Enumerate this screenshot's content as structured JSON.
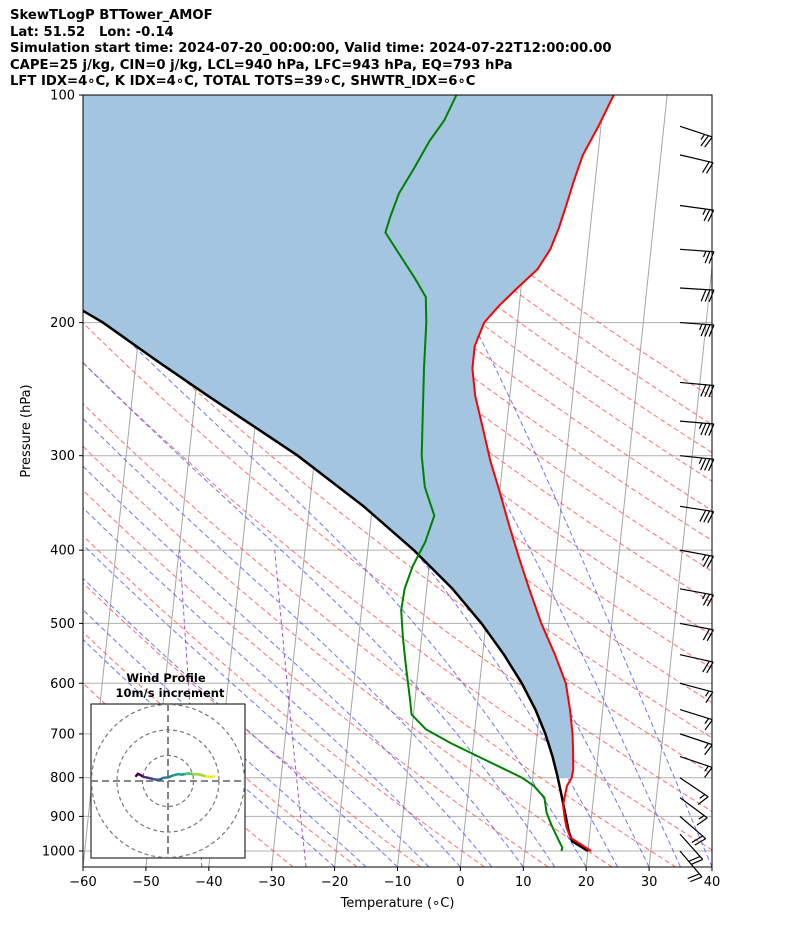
{
  "header": {
    "title": "SkewTLogP BTTower_AMOF",
    "location": "Lat: 51.52   Lon: -0.14",
    "times": "Simulation start time: 2024-07-20_00:00:00, Valid time: 2024-07-22T12:00:00.00",
    "indices1": "CAPE=25 j/kg, CIN=0 j/kg, LCL=940 hPa, LFC=943 hPa, EQ=793 hPa",
    "indices2": "LFT IDX=4∘C, K IDX=4∘C, TOTAL TOTS=39∘C, SHWTR_IDX=6∘C"
  },
  "chart_data": [
    {
      "type": "line",
      "subtype": "skew-t log-p",
      "xlabel": "Temperature (∘C)",
      "ylabel": "Pressure (hPa)",
      "xlim": [
        -60,
        40
      ],
      "ylim": [
        1050,
        100
      ],
      "yscale": "log",
      "xticks": [
        -60,
        -50,
        -40,
        -30,
        -20,
        -10,
        0,
        10,
        20,
        30,
        40
      ],
      "yticks": [
        100,
        200,
        300,
        400,
        500,
        600,
        700,
        800,
        900,
        1000
      ],
      "grid": true,
      "colors": {
        "temperature": "#ff0000",
        "dewpoint": "#008000",
        "parcel": "#000000",
        "cape_fill": "#a3c5df",
        "dry_adiabats": "#ff5555",
        "moist_adiabats": "#4455ff",
        "mixing_ratio": "#9b30d0",
        "isotherms": "#aaaaaa",
        "barbs": "#000000"
      },
      "series": [
        {
          "role": "temperature",
          "points": [
            [
              20.5,
              1000
            ],
            [
              17,
              960
            ],
            [
              16.2,
              930
            ],
            [
              15.7,
              900
            ],
            [
              15.3,
              870
            ],
            [
              15.4,
              850
            ],
            [
              15.6,
              820
            ],
            [
              16.2,
              800
            ],
            [
              16.3,
              780
            ],
            [
              16.0,
              740
            ],
            [
              15.6,
              700
            ],
            [
              14.8,
              650
            ],
            [
              13.7,
              600
            ],
            [
              11.5,
              550
            ],
            [
              8.8,
              500
            ],
            [
              6.3,
              450
            ],
            [
              4.2,
              410
            ],
            [
              2.0,
              370
            ],
            [
              0.0,
              335
            ],
            [
              -2.0,
              305
            ],
            [
              -3.8,
              275
            ],
            [
              -5.5,
              250
            ],
            [
              -6.4,
              230
            ],
            [
              -6.4,
              215
            ],
            [
              -5.3,
              200
            ],
            [
              -3.2,
              190
            ],
            [
              -0.6,
              180
            ],
            [
              2.3,
              170
            ],
            [
              4.0,
              160
            ],
            [
              5.0,
              150
            ],
            [
              5.8,
              140
            ],
            [
              6.6,
              130
            ],
            [
              7.6,
              120
            ],
            [
              9.6,
              110
            ],
            [
              11.5,
              100
            ]
          ]
        },
        {
          "role": "dewpoint",
          "points": [
            [
              15.8,
              1000
            ],
            [
              15.9,
              990
            ],
            [
              15.4,
              975
            ],
            [
              14.6,
              950
            ],
            [
              13.8,
              925
            ],
            [
              12.8,
              890
            ],
            [
              12.2,
              850
            ],
            [
              10.3,
              820
            ],
            [
              8.3,
              800
            ],
            [
              2.5,
              760
            ],
            [
              -3.6,
              720
            ],
            [
              -7.8,
              690
            ],
            [
              -10.3,
              660
            ],
            [
              -10.8,
              630
            ],
            [
              -11.4,
              600
            ],
            [
              -12.2,
              560
            ],
            [
              -13.0,
              520
            ],
            [
              -13.7,
              480
            ],
            [
              -13.5,
              450
            ],
            [
              -12.6,
              420
            ],
            [
              -11.0,
              390
            ],
            [
              -10.0,
              360
            ],
            [
              -12.0,
              330
            ],
            [
              -13.0,
              300
            ],
            [
              -13.6,
              260
            ],
            [
              -14.1,
              230
            ],
            [
              -14.5,
              200
            ],
            [
              -15.0,
              185
            ],
            [
              -17.0,
              175
            ],
            [
              -20.5,
              160
            ],
            [
              -22.5,
              152
            ],
            [
              -22.0,
              145
            ],
            [
              -21.0,
              135
            ],
            [
              -19.0,
              125
            ],
            [
              -17.0,
              115
            ],
            [
              -15.0,
              108
            ],
            [
              -13.5,
              100
            ]
          ]
        },
        {
          "role": "parcel",
          "points": [
            [
              20.0,
              1000
            ],
            [
              17.3,
              970
            ],
            [
              16.6,
              940
            ],
            [
              15.9,
              900
            ],
            [
              15.0,
              850
            ],
            [
              14.0,
              800
            ],
            [
              12.8,
              750
            ],
            [
              11.3,
              700
            ],
            [
              9.3,
              650
            ],
            [
              6.7,
              600
            ],
            [
              3.4,
              550
            ],
            [
              -0.7,
              500
            ],
            [
              -5.9,
              450
            ],
            [
              -12.7,
              400
            ],
            [
              -21.4,
              350
            ],
            [
              -32.7,
              300
            ],
            [
              -40.0,
              275
            ],
            [
              -48.0,
              250
            ],
            [
              -56.6,
              225
            ],
            [
              -65.9,
              200
            ],
            [
              -75.8,
              180
            ],
            [
              -87.0,
              160
            ],
            [
              -99.9,
              140
            ],
            [
              -114.9,
              120
            ],
            [
              -132.8,
              100
            ]
          ]
        }
      ],
      "wind_barbs": [
        {
          "p": 1000,
          "u": -7.2,
          "v": 8.5
        },
        {
          "p": 950,
          "u": -7.0,
          "v": 7.8
        },
        {
          "p": 900,
          "u": -7.5,
          "v": 6.5
        },
        {
          "p": 850,
          "u": -7.0,
          "v": 5.2
        },
        {
          "p": 800,
          "u": -6.2,
          "v": 4.2
        },
        {
          "p": 750,
          "u": -6.8,
          "v": 2.3
        },
        {
          "p": 700,
          "u": -7.2,
          "v": 2.4
        },
        {
          "p": 650,
          "u": -8.0,
          "v": 2.5
        },
        {
          "p": 600,
          "u": -8.2,
          "v": 2.2
        },
        {
          "p": 550,
          "u": -9.0,
          "v": 2.0
        },
        {
          "p": 500,
          "u": -10.5,
          "v": 2.0
        },
        {
          "p": 450,
          "u": -12.0,
          "v": 2.2
        },
        {
          "p": 400,
          "u": -13.5,
          "v": 2.5
        },
        {
          "p": 350,
          "u": -14.0,
          "v": 2.2
        },
        {
          "p": 300,
          "u": -17.0,
          "v": 1.8
        },
        {
          "p": 270,
          "u": -17.5,
          "v": 1.5
        },
        {
          "p": 240,
          "u": -16.5,
          "v": 1.5
        },
        {
          "p": 200,
          "u": -17.0,
          "v": 1.2
        },
        {
          "p": 180,
          "u": -16.0,
          "v": 1.0
        },
        {
          "p": 160,
          "u": -14.0,
          "v": 1.0
        },
        {
          "p": 140,
          "u": -13.0,
          "v": 1.8
        },
        {
          "p": 120,
          "u": -11.0,
          "v": 2.6
        },
        {
          "p": 110,
          "u": -11.5,
          "v": 3.8
        }
      ],
      "inset": {
        "title": "Wind Profile",
        "subtitle": "10m/s increment",
        "ring_increment": 10,
        "hodograph": [
          [
            -12.5,
            2.0
          ],
          [
            -11.8,
            2.8
          ],
          [
            -10.5,
            2.2
          ],
          [
            -9.5,
            1.6
          ],
          [
            -8.0,
            1.3
          ],
          [
            -6.0,
            0.8
          ],
          [
            -4.5,
            0.5
          ],
          [
            -3.0,
            0.6
          ],
          [
            -2.0,
            1.2
          ],
          [
            0.0,
            1.4
          ],
          [
            2.0,
            2.2
          ],
          [
            4.0,
            2.7
          ],
          [
            5.5,
            2.5
          ],
          [
            7.0,
            2.8
          ],
          [
            8.0,
            3.0
          ],
          [
            10.0,
            2.6
          ],
          [
            12.0,
            2.6
          ],
          [
            13.5,
            2.2
          ],
          [
            15.0,
            1.8
          ],
          [
            17.0,
            1.6
          ],
          [
            18.0,
            1.8
          ]
        ]
      }
    }
  ]
}
